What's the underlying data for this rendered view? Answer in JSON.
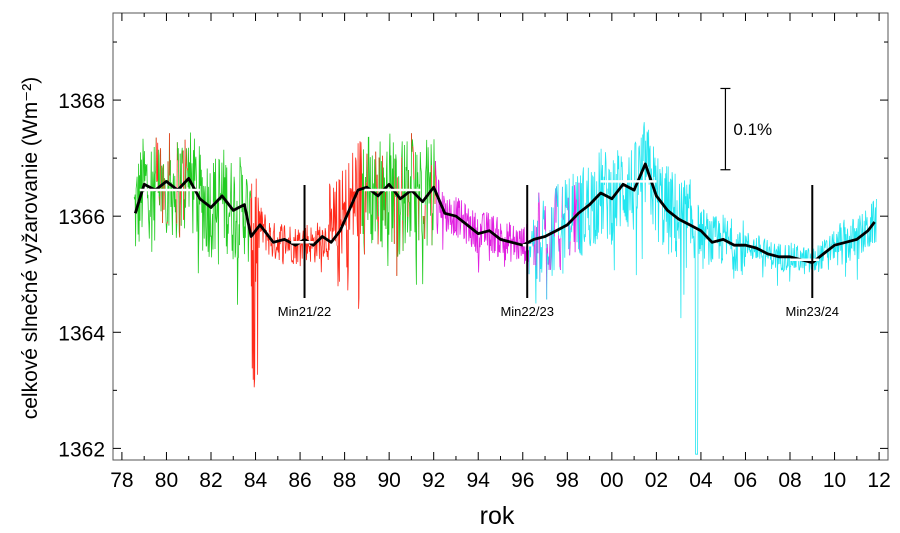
{
  "chart_data": {
    "type": "line",
    "xlabel": "rok",
    "ylabel": "celkové slnečné vyžarovanie  (Wm⁻²)",
    "xlim": [
      1977.6,
      2012.4
    ],
    "ylim": [
      1361.8,
      1369.5
    ],
    "x_ticks": [
      1978,
      1980,
      1982,
      1984,
      1986,
      1988,
      1990,
      1992,
      1994,
      1996,
      1998,
      2000,
      2002,
      2004,
      2006,
      2008,
      2010,
      2012
    ],
    "x_tick_labels": [
      "78",
      "80",
      "82",
      "84",
      "86",
      "88",
      "90",
      "92",
      "94",
      "96",
      "98",
      "00",
      "02",
      "04",
      "06",
      "08",
      "10",
      "12"
    ],
    "y_ticks": [
      1362,
      1364,
      1366,
      1368
    ],
    "y_tick_labels": [
      "1362",
      "1364",
      "1366",
      "1368"
    ],
    "grid": false,
    "legend": "none",
    "series_colors": {
      "green": "#22cc22",
      "red": "#ff2a1a",
      "magenta": "#e01ee0",
      "cyan": "#22e6f0",
      "smooth": "#000000",
      "levels": "#ffffff"
    },
    "smoothed_series": {
      "x": [
        1978.6,
        1979.0,
        1979.5,
        1980.0,
        1980.5,
        1981.0,
        1981.5,
        1982.0,
        1982.5,
        1983.0,
        1983.5,
        1983.8,
        1984.2,
        1984.8,
        1985.3,
        1985.8,
        1986.2,
        1986.6,
        1987.0,
        1987.4,
        1987.8,
        1988.2,
        1988.6,
        1989.0,
        1989.5,
        1990.0,
        1990.5,
        1991.0,
        1991.5,
        1992.0,
        1992.5,
        1993.0,
        1993.5,
        1994.0,
        1994.5,
        1995.0,
        1995.5,
        1996.0,
        1996.5,
        1997.0,
        1997.5,
        1998.0,
        1998.5,
        1999.0,
        1999.5,
        2000.0,
        2000.5,
        2001.0,
        2001.5,
        2002.0,
        2002.5,
        2003.0,
        2003.5,
        2004.0,
        2004.5,
        2005.0,
        2005.5,
        2006.0,
        2006.5,
        2007.0,
        2007.5,
        2008.0,
        2008.5,
        2009.0,
        2009.5,
        2010.0,
        2010.5,
        2011.0,
        2011.5,
        2011.8
      ],
      "values": [
        1366.05,
        1366.55,
        1366.45,
        1366.6,
        1366.45,
        1366.65,
        1366.3,
        1366.15,
        1366.35,
        1366.1,
        1366.2,
        1365.65,
        1365.85,
        1365.55,
        1365.6,
        1365.5,
        1365.6,
        1365.5,
        1365.65,
        1365.55,
        1365.75,
        1366.1,
        1366.45,
        1366.5,
        1366.35,
        1366.55,
        1366.3,
        1366.45,
        1366.25,
        1366.5,
        1366.05,
        1366.0,
        1365.85,
        1365.7,
        1365.75,
        1365.6,
        1365.55,
        1365.5,
        1365.6,
        1365.65,
        1365.75,
        1365.85,
        1366.05,
        1366.2,
        1366.4,
        1366.3,
        1366.55,
        1366.45,
        1366.9,
        1366.35,
        1366.1,
        1365.95,
        1365.85,
        1365.75,
        1365.55,
        1365.6,
        1365.5,
        1365.5,
        1365.45,
        1365.35,
        1365.3,
        1365.3,
        1365.25,
        1365.2,
        1365.35,
        1365.5,
        1365.55,
        1365.6,
        1365.75,
        1365.9
      ]
    },
    "cycle_levels": [
      {
        "x": [
          1978.8,
          1981.5
        ],
        "value": 1366.45
      },
      {
        "x": [
          1985.6,
          1986.6
        ],
        "value": 1365.55
      },
      {
        "x": [
          1988.9,
          1991.4
        ],
        "value": 1366.45
      },
      {
        "x": [
          1996.0,
          1996.4
        ],
        "value": 1365.5
      },
      {
        "x": [
          1999.5,
          2002.0
        ],
        "value": 1366.6
      },
      {
        "x": [
          2008.0,
          2009.3
        ],
        "value": 1365.25
      }
    ],
    "minima": [
      {
        "label": "Min21/22",
        "x": 1986.2
      },
      {
        "label": "Min22/23",
        "x": 1996.2
      },
      {
        "label": "Min23/24",
        "x": 2009.0
      }
    ],
    "scale_bar": {
      "label": "0.1%",
      "x": 2005.1,
      "from": 1366.8,
      "to": 1368.2
    }
  }
}
